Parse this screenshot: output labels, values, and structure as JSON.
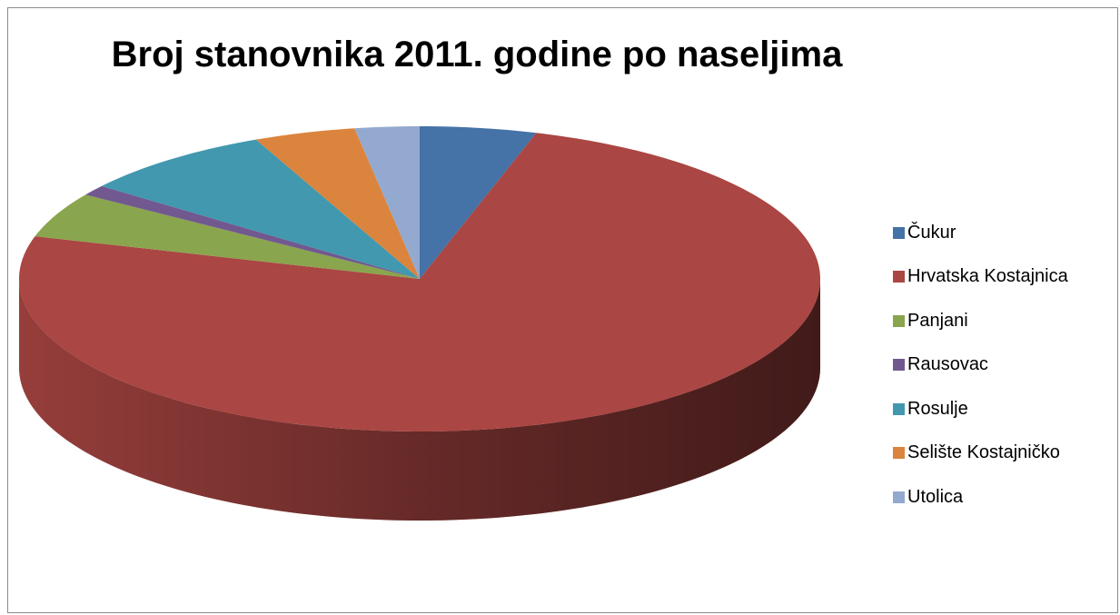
{
  "chart_data": {
    "type": "pie",
    "title": "Broj stanovnika 2011. godine po naseljima",
    "variant": "3d",
    "legend_position": "right",
    "categories": [
      "Čukur",
      "Hrvatska Kostajnica",
      "Panjani",
      "Rausovac",
      "Rosulje",
      "Selište Kostajničko",
      "Utolica"
    ],
    "values": [
      4.7,
      74.8,
      4.8,
      1.1,
      7.9,
      4.1,
      2.6
    ],
    "value_unit": "percent (estimated)",
    "colors": [
      "#4572A7",
      "#AA4643",
      "#89A54E",
      "#71588F",
      "#4198AF",
      "#DB843D",
      "#93A9CF"
    ]
  }
}
